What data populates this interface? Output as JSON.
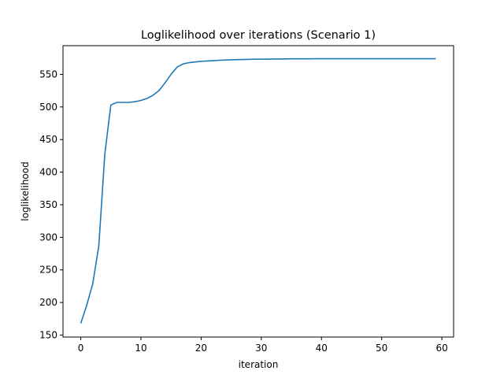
{
  "chart_data": {
    "type": "line",
    "title": "Loglikelihood over iterations (Scenario 1)",
    "xlabel": "iteration",
    "ylabel": "loglikelihood",
    "xlim": [
      -2.95,
      61.95
    ],
    "ylim": [
      147.0,
      594.0
    ],
    "xticks": [
      0,
      10,
      20,
      30,
      40,
      50,
      60
    ],
    "yticks": [
      150,
      200,
      250,
      300,
      350,
      400,
      450,
      500,
      550
    ],
    "grid": false,
    "line_color": "#1f77b4",
    "series": [
      {
        "x": [
          0,
          1,
          2,
          3,
          4,
          5,
          6,
          7,
          8,
          9,
          10,
          11,
          12,
          13,
          14,
          15,
          16,
          17,
          18,
          19,
          20,
          21,
          22,
          23,
          24,
          25,
          26,
          27,
          28,
          29,
          30,
          31,
          32,
          33,
          34,
          35,
          36,
          37,
          38,
          39,
          40,
          41,
          42,
          43,
          44,
          45,
          46,
          47,
          48,
          49,
          50,
          51,
          52,
          53,
          54,
          55,
          56,
          57,
          58,
          59
        ],
        "values": [
          168,
          196,
          229,
          287,
          428,
          503,
          507,
          507,
          507,
          508,
          510,
          513,
          518,
          525,
          537,
          550,
          561,
          566,
          568,
          569,
          570,
          570.5,
          571,
          571.5,
          572,
          572.3,
          572.6,
          572.8,
          573,
          573.2,
          573.3,
          573.4,
          573.5,
          573.6,
          573.7,
          573.8,
          573.8,
          573.9,
          573.9,
          574,
          574,
          574,
          574,
          574,
          574,
          574,
          574,
          574,
          574,
          574,
          574,
          574,
          574,
          574,
          574,
          574,
          574,
          574,
          574,
          574
        ]
      }
    ]
  }
}
